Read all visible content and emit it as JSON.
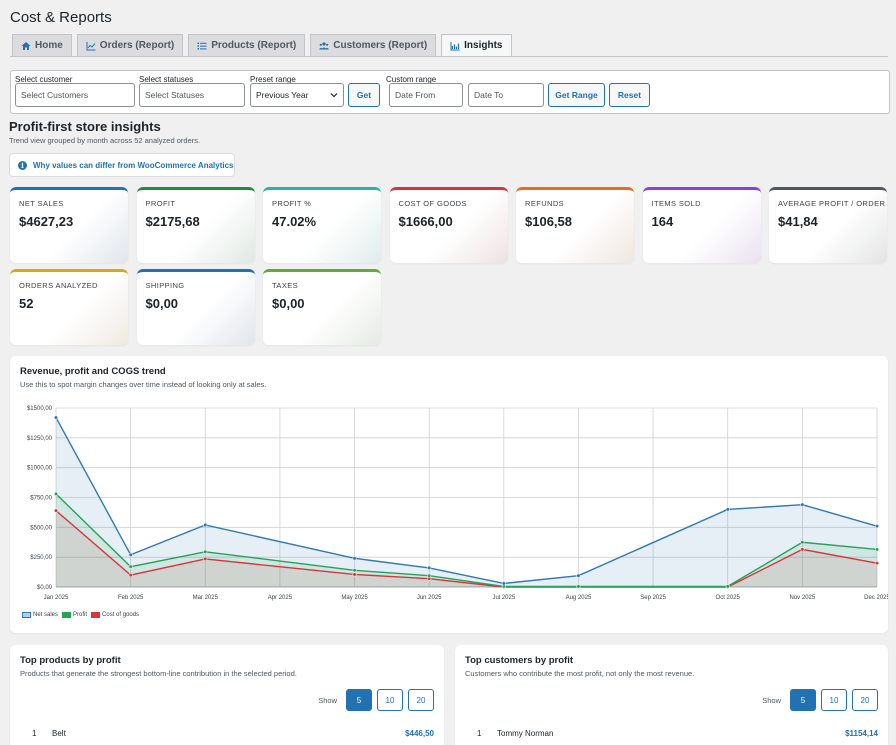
{
  "page": {
    "title": "Cost & Reports"
  },
  "tabs": [
    {
      "label": "Home",
      "icon": "home-icon",
      "active": false
    },
    {
      "label": "Orders (Report)",
      "icon": "chart-line-icon",
      "active": false
    },
    {
      "label": "Products (Report)",
      "icon": "list-icon",
      "active": false
    },
    {
      "label": "Customers (Report)",
      "icon": "users-icon",
      "active": false
    },
    {
      "label": "Insights",
      "icon": "chart-area-icon",
      "active": true
    }
  ],
  "filters": {
    "customer_label": "Select customer",
    "customer_placeholder": "Select Customers",
    "status_label": "Select statuses",
    "status_placeholder": "Select Statuses",
    "preset_label": "Preset range",
    "preset_value": "Previous Year",
    "get_label": "Get",
    "custom_label": "Custom range",
    "date_from_placeholder": "Date From",
    "date_to_placeholder": "Date To",
    "get_range_label": "Get Range",
    "reset_label": "Reset"
  },
  "insights": {
    "title": "Profit-first store insights",
    "subtitle": "Trend view grouped by month across 52 analyzed orders.",
    "why_label": "Why values can differ from WooCommerce Analytics"
  },
  "cards": [
    {
      "label": "NET SALES",
      "value": "$4627,23",
      "color": "#2271b1"
    },
    {
      "label": "PROFIT",
      "value": "$2175,68",
      "color": "#1e8e3e"
    },
    {
      "label": "PROFIT %",
      "value": "47.02%",
      "color": "#2ab3a6"
    },
    {
      "label": "COST OF GOODS",
      "value": "$1666,00",
      "color": "#d63638"
    },
    {
      "label": "REFUNDS",
      "value": "$106,58",
      "color": "#e26f1c"
    },
    {
      "label": "ITEMS SOLD",
      "value": "164",
      "color": "#8c3fd9"
    },
    {
      "label": "AVERAGE PROFIT / ORDER",
      "value": "$41,84",
      "color": "#50575e"
    },
    {
      "label": "ORDERS ANALYZED",
      "value": "52",
      "color": "#dba617"
    },
    {
      "label": "SHIPPING",
      "value": "$0,00",
      "color": "#2271b1"
    },
    {
      "label": "TAXES",
      "value": "$0,00",
      "color": "#5fa93d"
    }
  ],
  "chart_panel": {
    "title": "Revenue, profit and COGS trend",
    "subtitle": "Use this to spot margin changes over time instead of looking only at sales."
  },
  "chart_data": {
    "type": "line",
    "x": [
      "Jan 2025",
      "Feb 2025",
      "Mar 2025",
      "Apr 2025",
      "May 2025",
      "Jun 2025",
      "Jul 2025",
      "Aug 2025",
      "Sep 2025",
      "Oct 2025",
      "Nov 2025",
      "Dec 2025"
    ],
    "y_ticks": [
      "$0,00",
      "$250,00",
      "$500,00",
      "$750,00",
      "$1000,00",
      "$1250,00",
      "$1500,00"
    ],
    "ylim": [
      0,
      1500
    ],
    "series": [
      {
        "name": "Net sales",
        "color": "#2f79b5",
        "values": [
          1420,
          270,
          520,
          null,
          240,
          160,
          30,
          95,
          null,
          650,
          690,
          510
        ],
        "marked": [
          true,
          true,
          true,
          false,
          true,
          true,
          true,
          true,
          false,
          true,
          true,
          true
        ]
      },
      {
        "name": "Profit",
        "color": "#28a158",
        "values": [
          780,
          170,
          295,
          null,
          140,
          95,
          5,
          5,
          null,
          5,
          375,
          315
        ],
        "marked": [
          true,
          true,
          true,
          false,
          true,
          true,
          true,
          true,
          false,
          true,
          true,
          true
        ]
      },
      {
        "name": "Cost of goods",
        "color": "#d63638",
        "values": [
          640,
          100,
          235,
          null,
          105,
          70,
          0,
          0,
          null,
          0,
          315,
          200
        ],
        "marked": [
          true,
          true,
          true,
          false,
          true,
          true,
          true,
          true,
          false,
          true,
          true,
          true
        ]
      }
    ],
    "grid": true,
    "legend": "bottom-left"
  },
  "top_products": {
    "title": "Top products by profit",
    "subtitle": "Products that generate the strongest bottom-line contribution in the selected period.",
    "show_label": "Show",
    "options": [
      "5",
      "10",
      "20"
    ],
    "rows": [
      {
        "rank": "1",
        "name": "Belt",
        "amount": "$446,50"
      }
    ]
  },
  "top_customers": {
    "title": "Top customers by profit",
    "subtitle": "Customers who contribute the most profit, not only the most revenue.",
    "show_label": "Show",
    "options": [
      "5",
      "10",
      "20"
    ],
    "rows": [
      {
        "rank": "1",
        "name": "Tommy Norman",
        "amount": "$1154,14"
      }
    ]
  }
}
